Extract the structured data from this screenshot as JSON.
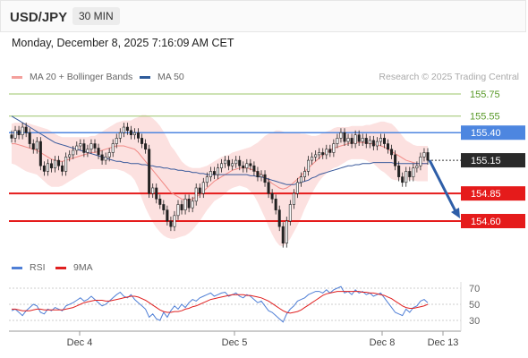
{
  "header": {
    "symbol": "USD/JPY",
    "timeframe": "30 MIN"
  },
  "datetime": "Monday, December 8, 2025 7:16:09 AM CET",
  "legend_main": [
    {
      "label": "MA 20 + Bollinger Bands",
      "color": "#f4a09c"
    },
    {
      "label": "MA 50",
      "color": "#2e5b9a"
    }
  ],
  "credit": "Research © 2025 Trading Central",
  "legend_rsi": [
    {
      "label": "RSI",
      "color": "#4f7fd6"
    },
    {
      "label": "9MA",
      "color": "#e02020"
    }
  ],
  "colors": {
    "up": "#2f2f2f",
    "down": "#1a1a1a",
    "band": "#f9c9c7",
    "ma20": "#f28a86",
    "ma50": "#3a5a9c",
    "resistance": "#9bc46a",
    "pivot": "#4d86e0",
    "support": "#e51b1b",
    "arrow": "#2e5ea8"
  },
  "chart_data": [
    {
      "type": "candlestick",
      "y_range": [
        154.45,
        155.85
      ],
      "x_ticks": [
        "Dec 4",
        "Dec 5",
        "Dec 8",
        "Dec 13"
      ],
      "current_price": 155.15,
      "levels": [
        {
          "value": 155.75,
          "label": "155.75",
          "kind": "resistance"
        },
        {
          "value": 155.55,
          "label": "155.55",
          "kind": "resistance"
        },
        {
          "value": 155.4,
          "label": "155.40",
          "kind": "pivot"
        },
        {
          "value": 155.15,
          "label": "155.15",
          "kind": "current"
        },
        {
          "value": 154.85,
          "label": "154.85",
          "kind": "support"
        },
        {
          "value": 154.6,
          "label": "154.60",
          "kind": "support"
        }
      ],
      "forecast": {
        "from": 155.15,
        "to": 154.6,
        "direction": "down"
      },
      "close": [
        155.35,
        155.42,
        155.38,
        155.45,
        155.4,
        155.3,
        155.25,
        155.32,
        155.1,
        155.05,
        155.12,
        155.08,
        155.15,
        155.1,
        155.05,
        155.18,
        155.2,
        155.24,
        155.28,
        155.3,
        155.22,
        155.25,
        155.3,
        155.26,
        155.2,
        155.15,
        155.18,
        155.22,
        155.3,
        155.35,
        155.4,
        155.45,
        155.42,
        155.38,
        155.4,
        155.35,
        155.3,
        155.25,
        154.85,
        154.9,
        154.8,
        154.75,
        154.7,
        154.6,
        154.55,
        154.65,
        154.75,
        154.7,
        154.8,
        154.72,
        154.78,
        154.9,
        154.85,
        154.95,
        155.0,
        155.05,
        155.02,
        155.08,
        155.12,
        155.15,
        155.1,
        155.12,
        155.15,
        155.1,
        155.08,
        155.12,
        155.1,
        155.05,
        155.0,
        155.02,
        154.95,
        154.85,
        154.8,
        154.7,
        154.55,
        154.4,
        154.6,
        154.75,
        154.85,
        154.95,
        155.0,
        155.05,
        155.15,
        155.18,
        155.2,
        155.22,
        155.2,
        155.25,
        155.22,
        155.3,
        155.35,
        155.4,
        155.32,
        155.35,
        155.3,
        155.38,
        155.32,
        155.35,
        155.3,
        155.33,
        155.28,
        155.32,
        155.35,
        155.3,
        155.25,
        155.2,
        155.1,
        155.0,
        154.95,
        155.05,
        155.0,
        155.08,
        155.1,
        155.18,
        155.22,
        155.15
      ],
      "ma20": [
        155.3,
        155.3,
        155.29,
        155.28,
        155.27,
        155.26,
        155.25,
        155.24,
        155.22,
        155.2,
        155.18,
        155.16,
        155.15,
        155.14,
        155.14,
        155.15,
        155.16,
        155.17,
        155.18,
        155.19,
        155.2,
        155.21,
        155.22,
        155.22,
        155.23,
        155.24,
        155.25,
        155.26,
        155.27,
        155.28,
        155.28,
        155.28,
        155.27,
        155.26,
        155.25,
        155.22,
        155.18,
        155.14,
        155.1,
        155.06,
        155.02,
        154.98,
        154.94,
        154.9,
        154.86,
        154.84,
        154.82,
        154.8,
        154.79,
        154.79,
        154.8,
        154.82,
        154.84,
        154.87,
        154.9,
        154.93,
        154.96,
        154.98,
        155.0,
        155.02,
        155.04,
        155.06,
        155.07,
        155.08,
        155.08,
        155.08,
        155.07,
        155.06,
        155.04,
        155.02,
        155.0,
        154.97,
        154.94,
        154.92,
        154.9,
        154.89,
        154.9,
        154.92,
        154.95,
        154.98,
        155.01,
        155.05,
        155.08,
        155.11,
        155.14,
        155.17,
        155.2,
        155.22,
        155.24,
        155.26,
        155.27,
        155.28,
        155.29,
        155.3,
        155.31,
        155.31,
        155.31,
        155.31,
        155.31,
        155.3,
        155.3,
        155.29,
        155.28,
        155.27,
        155.25,
        155.23,
        155.21,
        155.19,
        155.17,
        155.15,
        155.14,
        155.13,
        155.12,
        155.12,
        155.12,
        155.12
      ],
      "bb_width": [
        0.18,
        0.19,
        0.2,
        0.21,
        0.22,
        0.22,
        0.22,
        0.22,
        0.23,
        0.24,
        0.25,
        0.25,
        0.24,
        0.23,
        0.22,
        0.21,
        0.2,
        0.19,
        0.18,
        0.17,
        0.16,
        0.15,
        0.15,
        0.15,
        0.16,
        0.17,
        0.18,
        0.19,
        0.2,
        0.21,
        0.22,
        0.23,
        0.24,
        0.25,
        0.28,
        0.32,
        0.38,
        0.42,
        0.45,
        0.47,
        0.48,
        0.48,
        0.47,
        0.45,
        0.42,
        0.4,
        0.37,
        0.34,
        0.32,
        0.3,
        0.28,
        0.26,
        0.24,
        0.22,
        0.2,
        0.19,
        0.18,
        0.18,
        0.18,
        0.17,
        0.16,
        0.16,
        0.16,
        0.16,
        0.17,
        0.18,
        0.2,
        0.23,
        0.27,
        0.32,
        0.37,
        0.42,
        0.46,
        0.5,
        0.52,
        0.52,
        0.5,
        0.48,
        0.45,
        0.42,
        0.38,
        0.34,
        0.3,
        0.26,
        0.23,
        0.21,
        0.2,
        0.19,
        0.18,
        0.18,
        0.18,
        0.17,
        0.16,
        0.15,
        0.15,
        0.15,
        0.15,
        0.15,
        0.16,
        0.17,
        0.18,
        0.2,
        0.22,
        0.23,
        0.24,
        0.25,
        0.24,
        0.22,
        0.2,
        0.18,
        0.17,
        0.16,
        0.16,
        0.16,
        0.16,
        0.16
      ],
      "ma50": [
        155.55,
        155.53,
        155.51,
        155.49,
        155.47,
        155.45,
        155.43,
        155.41,
        155.39,
        155.37,
        155.35,
        155.33,
        155.31,
        155.3,
        155.29,
        155.28,
        155.27,
        155.26,
        155.25,
        155.24,
        155.23,
        155.22,
        155.21,
        155.2,
        155.19,
        155.18,
        155.17,
        155.16,
        155.15,
        155.14,
        155.14,
        155.13,
        155.13,
        155.12,
        155.12,
        155.12,
        155.11,
        155.11,
        155.1,
        155.1,
        155.09,
        155.09,
        155.08,
        155.08,
        155.07,
        155.07,
        155.06,
        155.06,
        155.05,
        155.05,
        155.04,
        155.04,
        155.03,
        155.03,
        155.02,
        155.02,
        155.02,
        155.02,
        155.02,
        155.02,
        155.02,
        155.02,
        155.02,
        155.02,
        155.02,
        155.02,
        155.01,
        155.01,
        155.0,
        155.0,
        154.99,
        154.98,
        154.97,
        154.96,
        154.95,
        154.94,
        154.93,
        154.93,
        154.93,
        154.94,
        154.95,
        154.96,
        154.97,
        154.99,
        155.0,
        155.02,
        155.03,
        155.04,
        155.05,
        155.06,
        155.07,
        155.08,
        155.09,
        155.1,
        155.1,
        155.11,
        155.11,
        155.12,
        155.12,
        155.12,
        155.13,
        155.13,
        155.13,
        155.13,
        155.13,
        155.13,
        155.12,
        155.12,
        155.12,
        155.12,
        155.12,
        155.12,
        155.12,
        155.12,
        155.12,
        155.12
      ]
    },
    {
      "type": "line",
      "panel": "RSI",
      "y_ticks": [
        70,
        50,
        30
      ],
      "ylim": [
        20,
        80
      ],
      "series": [
        {
          "name": "RSI",
          "values": [
            42,
            44,
            40,
            36,
            42,
            46,
            50,
            48,
            40,
            38,
            44,
            42,
            46,
            44,
            42,
            48,
            50,
            52,
            55,
            58,
            54,
            56,
            60,
            56,
            52,
            48,
            50,
            54,
            58,
            62,
            65,
            60,
            58,
            62,
            56,
            52,
            48,
            44,
            34,
            38,
            32,
            30,
            40,
            34,
            42,
            48,
            44,
            50,
            46,
            52,
            56,
            54,
            58,
            60,
            62,
            64,
            60,
            62,
            64,
            65,
            60,
            62,
            64,
            60,
            58,
            62,
            60,
            56,
            52,
            54,
            48,
            42,
            40,
            36,
            32,
            28,
            38,
            44,
            48,
            54,
            56,
            58,
            62,
            64,
            66,
            66,
            64,
            68,
            64,
            68,
            70,
            72,
            64,
            66,
            62,
            68,
            64,
            66,
            62,
            64,
            60,
            62,
            64,
            58,
            52,
            46,
            40,
            38,
            36,
            44,
            40,
            46,
            48,
            54,
            56,
            52
          ]
        },
        {
          "name": "9MA",
          "values": [
            44,
            44,
            43,
            42,
            42,
            42,
            43,
            44,
            44,
            43,
            43,
            43,
            43,
            43,
            43,
            44,
            45,
            46,
            48,
            50,
            52,
            53,
            54,
            55,
            55,
            55,
            54,
            54,
            55,
            56,
            57,
            58,
            59,
            60,
            60,
            59,
            57,
            55,
            52,
            49,
            46,
            43,
            41,
            40,
            40,
            41,
            41,
            42,
            44,
            45,
            47,
            48,
            50,
            52,
            54,
            56,
            57,
            58,
            59,
            60,
            61,
            62,
            62,
            62,
            62,
            61,
            61,
            60,
            59,
            58,
            56,
            54,
            51,
            48,
            45,
            42,
            40,
            39,
            40,
            41,
            43,
            46,
            49,
            52,
            55,
            58,
            61,
            63,
            64,
            65,
            66,
            66,
            66,
            66,
            66,
            66,
            66,
            65,
            65,
            64,
            64,
            63,
            62,
            61,
            59,
            57,
            54,
            51,
            48,
            46,
            45,
            45,
            46,
            47,
            48,
            50
          ]
        }
      ]
    }
  ]
}
